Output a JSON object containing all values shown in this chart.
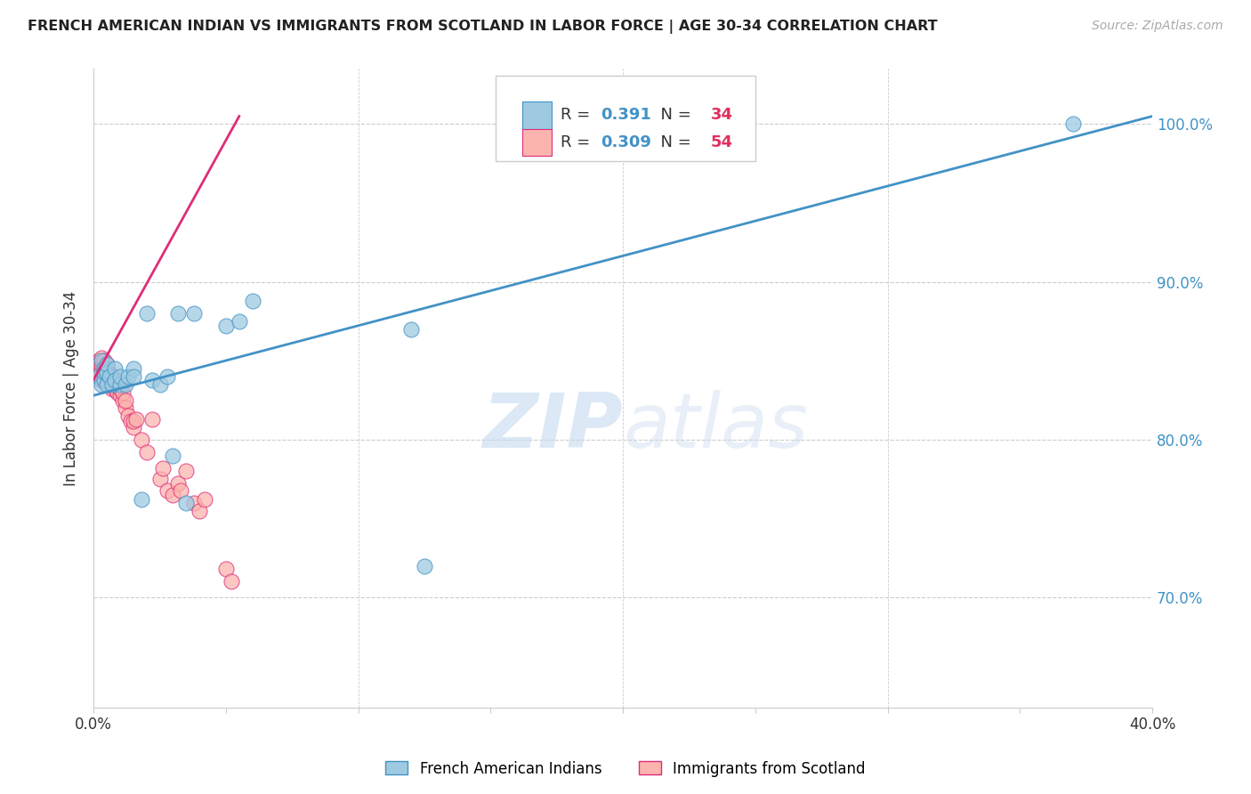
{
  "title": "FRENCH AMERICAN INDIAN VS IMMIGRANTS FROM SCOTLAND IN LABOR FORCE | AGE 30-34 CORRELATION CHART",
  "source": "Source: ZipAtlas.com",
  "ylabel": "In Labor Force | Age 30-34",
  "xlim": [
    0.0,
    0.4
  ],
  "ylim": [
    0.63,
    1.035
  ],
  "yticks": [
    0.7,
    0.8,
    0.9,
    1.0
  ],
  "ytick_labels": [
    "70.0%",
    "80.0%",
    "90.0%",
    "100.0%"
  ],
  "xticks": [
    0.0,
    0.05,
    0.1,
    0.15,
    0.2,
    0.25,
    0.3,
    0.35,
    0.4
  ],
  "xtick_labels": [
    "0.0%",
    "",
    "",
    "",
    "",
    "",
    "",
    "",
    "40.0%"
  ],
  "blue_scatter_x": [
    0.002,
    0.003,
    0.003,
    0.004,
    0.004,
    0.004,
    0.005,
    0.005,
    0.005,
    0.006,
    0.007,
    0.008,
    0.008,
    0.01,
    0.01,
    0.012,
    0.013,
    0.015,
    0.015,
    0.018,
    0.02,
    0.022,
    0.025,
    0.028,
    0.03,
    0.032,
    0.035,
    0.038,
    0.05,
    0.055,
    0.06,
    0.12,
    0.125,
    0.37
  ],
  "blue_scatter_y": [
    0.84,
    0.85,
    0.835,
    0.845,
    0.838,
    0.843,
    0.842,
    0.835,
    0.848,
    0.84,
    0.835,
    0.845,
    0.838,
    0.835,
    0.84,
    0.835,
    0.84,
    0.845,
    0.84,
    0.762,
    0.88,
    0.838,
    0.835,
    0.84,
    0.79,
    0.88,
    0.76,
    0.88,
    0.872,
    0.875,
    0.888,
    0.87,
    0.72,
    1.0
  ],
  "pink_scatter_x": [
    0.002,
    0.002,
    0.002,
    0.002,
    0.003,
    0.003,
    0.003,
    0.003,
    0.003,
    0.004,
    0.004,
    0.004,
    0.004,
    0.004,
    0.005,
    0.005,
    0.005,
    0.006,
    0.006,
    0.006,
    0.007,
    0.007,
    0.007,
    0.008,
    0.008,
    0.008,
    0.009,
    0.009,
    0.01,
    0.01,
    0.011,
    0.011,
    0.012,
    0.012,
    0.013,
    0.014,
    0.015,
    0.015,
    0.016,
    0.018,
    0.02,
    0.022,
    0.025,
    0.026,
    0.028,
    0.03,
    0.032,
    0.033,
    0.035,
    0.038,
    0.04,
    0.042,
    0.05,
    0.052
  ],
  "pink_scatter_y": [
    0.845,
    0.85,
    0.842,
    0.848,
    0.84,
    0.845,
    0.848,
    0.852,
    0.838,
    0.843,
    0.848,
    0.84,
    0.842,
    0.85,
    0.84,
    0.845,
    0.848,
    0.835,
    0.838,
    0.842,
    0.832,
    0.836,
    0.84,
    0.832,
    0.836,
    0.838,
    0.83,
    0.834,
    0.828,
    0.832,
    0.825,
    0.83,
    0.82,
    0.825,
    0.815,
    0.812,
    0.808,
    0.812,
    0.813,
    0.8,
    0.792,
    0.813,
    0.775,
    0.782,
    0.768,
    0.765,
    0.772,
    0.768,
    0.78,
    0.76,
    0.755,
    0.762,
    0.718,
    0.71
  ],
  "blue_color": "#9ecae1",
  "pink_color": "#fbb4ae",
  "blue_line_color": "#4292c6",
  "pink_line_color": "#de2d7a",
  "R_blue": 0.391,
  "N_blue": 34,
  "R_pink": 0.309,
  "N_pink": 54,
  "watermark_zip": "ZIP",
  "watermark_atlas": "atlas",
  "legend_blue": "French American Indians",
  "legend_pink": "Immigrants from Scotland",
  "background_color": "#ffffff",
  "grid_color": "#cccccc",
  "blue_trendline_x": [
    0.0,
    0.4
  ],
  "blue_trendline_y": [
    0.828,
    1.005
  ],
  "pink_trendline_x": [
    0.0,
    0.055
  ],
  "pink_trendline_y": [
    0.838,
    1.005
  ]
}
